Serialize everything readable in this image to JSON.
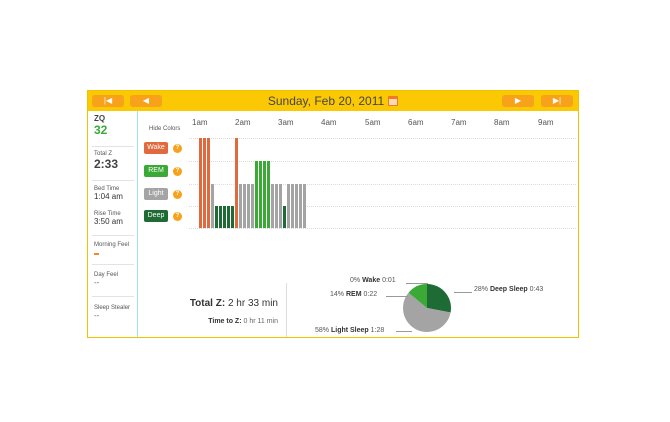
{
  "header": {
    "title": "Sunday, Feb 20, 2011",
    "first_label": "|◀",
    "prev_label": "◀",
    "next_label": "▶",
    "last_label": "▶|"
  },
  "sidebar": {
    "zq_label": "ZQ",
    "zq_value": "32",
    "total_z_label": "Total Z",
    "total_z_value": "2:33",
    "bed_time_label": "Bed Time",
    "bed_time_value": "1:04 am",
    "rise_time_label": "Rise Time",
    "rise_time_value": "3:50 am",
    "morning_feel_label": "Morning Feel",
    "day_feel_label": "Day Feel",
    "day_feel_value": "--",
    "sleep_stealer_label": "Sleep Stealer",
    "sleep_stealer_value": "--"
  },
  "graph": {
    "hide_colors_label": "Hide Colors",
    "hours": [
      "1am",
      "2am",
      "3am",
      "4am",
      "5am",
      "6am",
      "7am",
      "8am",
      "9am"
    ],
    "legend": [
      {
        "label": "Wake",
        "color": "#e06a3d"
      },
      {
        "label": "REM",
        "color": "#3aa935"
      },
      {
        "label": "Light",
        "color": "#a4a4a4"
      },
      {
        "label": "Deep",
        "color": "#1e6b36"
      }
    ],
    "help_glyph": "?",
    "stage_colors": {
      "wake": "#e06a3d",
      "rem": "#3aa935",
      "light": "#a4a4a4",
      "deep": "#1e6b36"
    },
    "segments": [
      {
        "stage": "wake",
        "count": 3
      },
      {
        "stage": "light",
        "count": 1
      },
      {
        "stage": "deep",
        "count": 5
      },
      {
        "stage": "wake",
        "count": 1
      },
      {
        "stage": "light",
        "count": 4
      },
      {
        "stage": "rem",
        "count": 4
      },
      {
        "stage": "light",
        "count": 3
      },
      {
        "stage": "deep",
        "count": 1
      },
      {
        "stage": "light",
        "count": 5
      }
    ]
  },
  "totals": {
    "total_z_label": "Total Z:",
    "total_z_value": "2 hr 33 min",
    "time_to_z_label": "Time to Z:",
    "time_to_z_value": "0 hr 11 min"
  },
  "pie": {
    "slices": [
      {
        "name": "Wake",
        "percent": "0%",
        "time": "0:01",
        "value": 0,
        "color": "#e06a3d"
      },
      {
        "name": "REM",
        "percent": "14%",
        "time": "0:22",
        "value": 14,
        "color": "#3aa935"
      },
      {
        "name": "Deep Sleep",
        "percent": "28%",
        "time": "0:43",
        "value": 28,
        "color": "#1e6b36"
      },
      {
        "name": "Light Sleep",
        "percent": "58%",
        "time": "1:28",
        "value": 58,
        "color": "#a4a4a4"
      }
    ]
  }
}
